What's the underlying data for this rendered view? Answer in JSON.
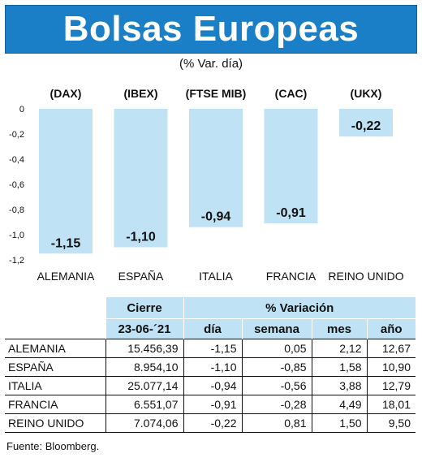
{
  "title": "Bolsas Europeas",
  "subtitle": "(% Var. día)",
  "chart_data": {
    "type": "bar",
    "categories": [
      "ALEMANIA",
      "ESPAÑA",
      "ITALIA",
      "FRANCIA",
      "REINO UNIDO"
    ],
    "indices": [
      "(DAX)",
      "(IBEX)",
      "(FTSE MIB)",
      "(CAC)",
      "(UKX)"
    ],
    "values": [
      -1.15,
      -1.1,
      -0.94,
      -0.91,
      -0.22
    ],
    "value_labels": [
      "-1,15",
      "-1,10",
      "-0,94",
      "-0,91",
      "-0,22"
    ],
    "ylim": [
      -1.2,
      0
    ],
    "yticks": [
      0,
      -0.2,
      -0.4,
      -0.6,
      -0.8,
      -1.0,
      -1.2
    ],
    "ytick_labels": [
      "0",
      "-0,2",
      "-0,4",
      "-0,6",
      "-0,8",
      "-1,0",
      "-1,2"
    ],
    "bar_color": "#bfe3f5"
  },
  "table": {
    "header_cierre": "Cierre",
    "header_variacion": "% Variación",
    "date": "23-06-´21",
    "columns": [
      "día",
      "semana",
      "mes",
      "año"
    ],
    "rows": [
      {
        "pais": "ALEMANIA",
        "cierre": "15.456,39",
        "dia": "-1,15",
        "semana": "0,05",
        "mes": "2,12",
        "ano": "12,67"
      },
      {
        "pais": "ESPAÑA",
        "cierre": "8.954,10",
        "dia": "-1,10",
        "semana": "-0,85",
        "mes": "1,58",
        "ano": "10,90"
      },
      {
        "pais": "ITALIA",
        "cierre": "25.077,14",
        "dia": "-0,94",
        "semana": "-0,56",
        "mes": "3,88",
        "ano": "12,79"
      },
      {
        "pais": "FRANCIA",
        "cierre": "6.551,07",
        "dia": "-0,91",
        "semana": "-0,28",
        "mes": "4,49",
        "ano": "18,01"
      },
      {
        "pais": "REINO UNIDO",
        "cierre": "7.074,06",
        "dia": "-0,22",
        "semana": "0,81",
        "mes": "1,50",
        "ano": "9,50"
      }
    ]
  },
  "source": "Fuente: Bloomberg.",
  "colors": {
    "banner": "#1b7fc7",
    "header_fill": "#bfe3f5"
  }
}
